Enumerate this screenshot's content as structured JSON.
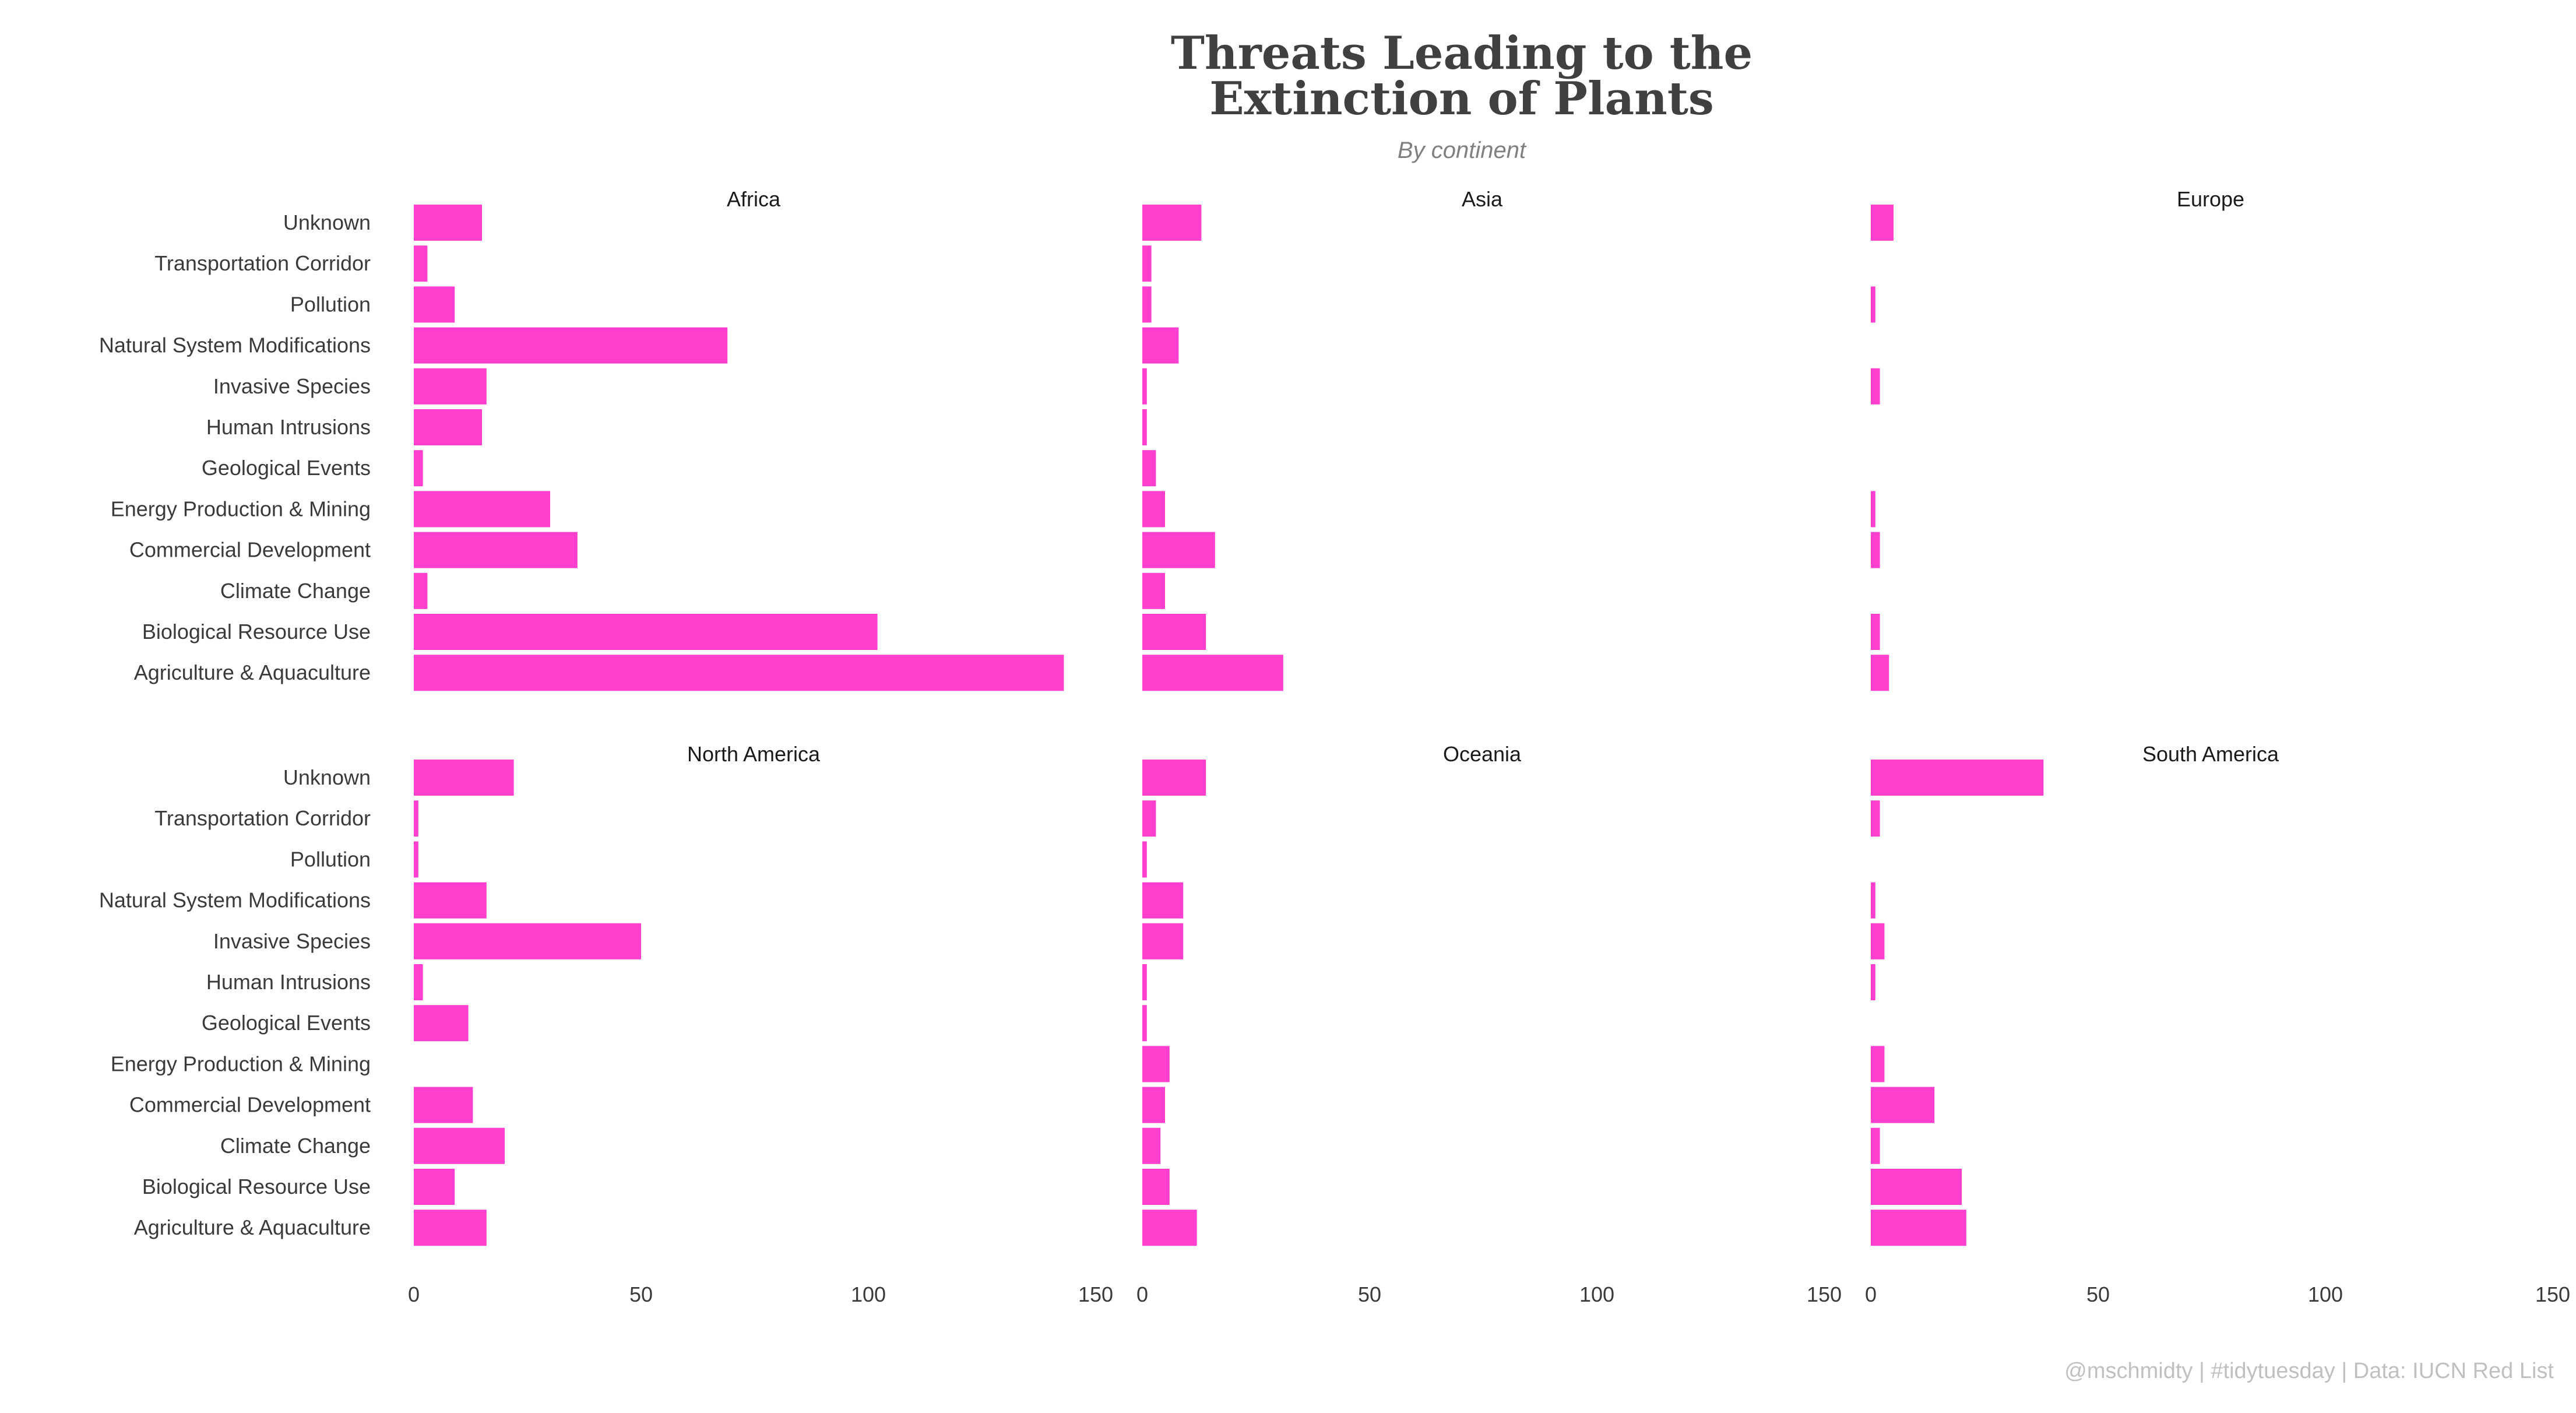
{
  "chart_data": {
    "type": "bar",
    "orientation": "horizontal",
    "title_lines": [
      "Threats Leading to the",
      "Extinction of Plants"
    ],
    "subtitle": "By continent",
    "caption": "@mschmidty | #tidytuesday | Data: IUCN Red List",
    "bar_color": "#ff40cf",
    "xlim": [
      0,
      150
    ],
    "xticks": [
      0,
      50,
      100,
      150
    ],
    "grid": false,
    "categories": [
      "Unknown",
      "Transportation Corridor",
      "Pollution",
      "Natural System Modifications",
      "Invasive Species",
      "Human Intrusions",
      "Geological Events",
      "Energy Production & Mining",
      "Commercial Development",
      "Climate Change",
      "Biological Resource Use",
      "Agriculture & Aquaculture"
    ],
    "panels": [
      {
        "name": "Africa",
        "values": [
          15,
          3,
          9,
          69,
          16,
          15,
          2,
          30,
          36,
          3,
          102,
          143
        ]
      },
      {
        "name": "Asia",
        "values": [
          13,
          2,
          2,
          8,
          1,
          1,
          3,
          5,
          16,
          5,
          14,
          31
        ]
      },
      {
        "name": "Europe",
        "values": [
          5,
          0,
          1,
          0,
          2,
          0,
          0,
          1,
          2,
          0,
          2,
          4
        ]
      },
      {
        "name": "North America",
        "values": [
          22,
          1,
          1,
          16,
          50,
          2,
          12,
          0,
          13,
          20,
          9,
          16
        ]
      },
      {
        "name": "Oceania",
        "values": [
          14,
          3,
          1,
          9,
          9,
          1,
          1,
          6,
          5,
          4,
          6,
          12
        ]
      },
      {
        "name": "South America",
        "values": [
          38,
          2,
          0,
          1,
          3,
          1,
          0,
          3,
          14,
          2,
          20,
          21
        ]
      }
    ]
  }
}
